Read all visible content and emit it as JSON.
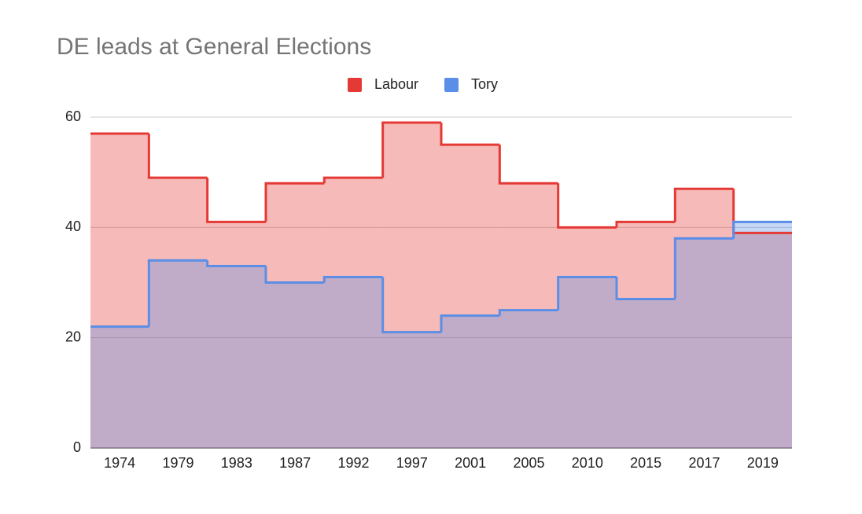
{
  "chart_data": {
    "type": "stepped-area",
    "title": "DE leads at General Elections",
    "categories": [
      "1974",
      "1979",
      "1983",
      "1987",
      "1992",
      "1997",
      "2001",
      "2005",
      "2010",
      "2015",
      "2017",
      "2019"
    ],
    "series": [
      {
        "name": "Labour",
        "color": "#e53935",
        "values": [
          57,
          49,
          41,
          48,
          49,
          59,
          55,
          48,
          40,
          41,
          47,
          39
        ]
      },
      {
        "name": "Tory",
        "color": "#5b8ee6",
        "values": [
          22,
          34,
          33,
          30,
          31,
          21,
          24,
          25,
          31,
          27,
          38,
          41
        ]
      }
    ],
    "ylim": [
      0,
      60
    ],
    "yticks": [
      0,
      20,
      40,
      60
    ],
    "grid": true,
    "legend": "top"
  }
}
